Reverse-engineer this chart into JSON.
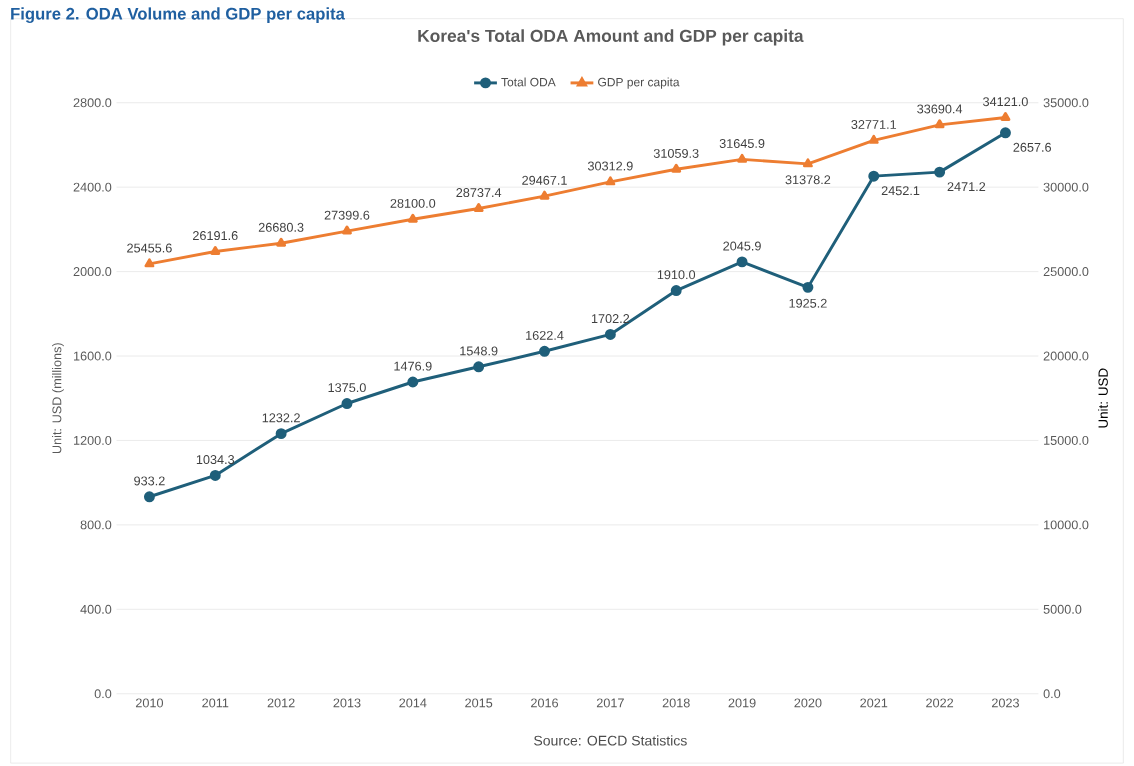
{
  "chart_data": {
    "type": "line",
    "title": "Korea's Total ODA Amount and GDP per capita",
    "ylabel": "Unit: USD (millions)",
    "y2label": "Unit: USD",
    "annotations": [
      "Figure 2. ODA Volume and GDP per capita",
      "Source: OECD Statistics"
    ],
    "categories": [
      "2010",
      "2011",
      "2012",
      "2013",
      "2014",
      "2015",
      "2016",
      "2017",
      "2018",
      "2019",
      "2020",
      "2021",
      "2022",
      "2023"
    ],
    "series": [
      {
        "name": "Total ODA",
        "color": "#1f5f7a",
        "marker": "circle",
        "values": [
          933.2,
          1034.3,
          1232.2,
          1375.0,
          1476.9,
          1548.9,
          1622.4,
          1702.2,
          1910.0,
          2045.9,
          1925.2,
          2452.1,
          2471.2,
          2657.6
        ],
        "value_labels": [
          "933.2",
          "1034.3",
          "1232.2",
          "1375.0",
          "1476.9",
          "1548.9",
          "1622.4",
          "1702.2",
          "1910.0",
          "2045.9",
          "1925.2",
          "2452.1",
          "2471.2",
          "2657.6"
        ]
      },
      {
        "name": "GDP per capita",
        "color": "#ed7d31",
        "marker": "triangle",
        "axis": "y2",
        "values": [
          25455.6,
          26191.6,
          26680.3,
          27399.6,
          28100.0,
          28737.4,
          29467.1,
          30312.9,
          31059.3,
          31645.9,
          31378.2,
          32771.1,
          33690.4,
          34121.0
        ],
        "value_labels": [
          "25455.6",
          "26191.6",
          "26680.3",
          "27399.6",
          "28100.0",
          "28737.4",
          "29467.1",
          "30312.9",
          "31059.3",
          "31645.9",
          "31378.2",
          "32771.1",
          "33690.4",
          "34121.0"
        ]
      }
    ],
    "ylim": [
      0,
      2800
    ],
    "yticks": [
      {
        "value": 0,
        "label": "0.0"
      },
      {
        "value": 400,
        "label": "400.0"
      },
      {
        "value": 800,
        "label": "800.0"
      },
      {
        "value": 1200,
        "label": "1200.0"
      },
      {
        "value": 1600,
        "label": "1600.0"
      },
      {
        "value": 2000,
        "label": "2000.0"
      },
      {
        "value": 2400,
        "label": "2400.0"
      },
      {
        "value": 2800,
        "label": "2800.0"
      }
    ],
    "y2lim": [
      0,
      35000
    ],
    "y2ticks": [
      {
        "value": 0,
        "label": "0.0"
      },
      {
        "value": 5000,
        "label": "5000.0"
      },
      {
        "value": 10000,
        "label": "10000.0"
      },
      {
        "value": 15000,
        "label": "15000.0"
      },
      {
        "value": 20000,
        "label": "20000.0"
      },
      {
        "value": 25000,
        "label": "25000.0"
      },
      {
        "value": 30000,
        "label": "30000.0"
      },
      {
        "value": 35000,
        "label": "35000.0"
      }
    ],
    "grid": "y",
    "legend": "top",
    "line_style": "solid"
  }
}
